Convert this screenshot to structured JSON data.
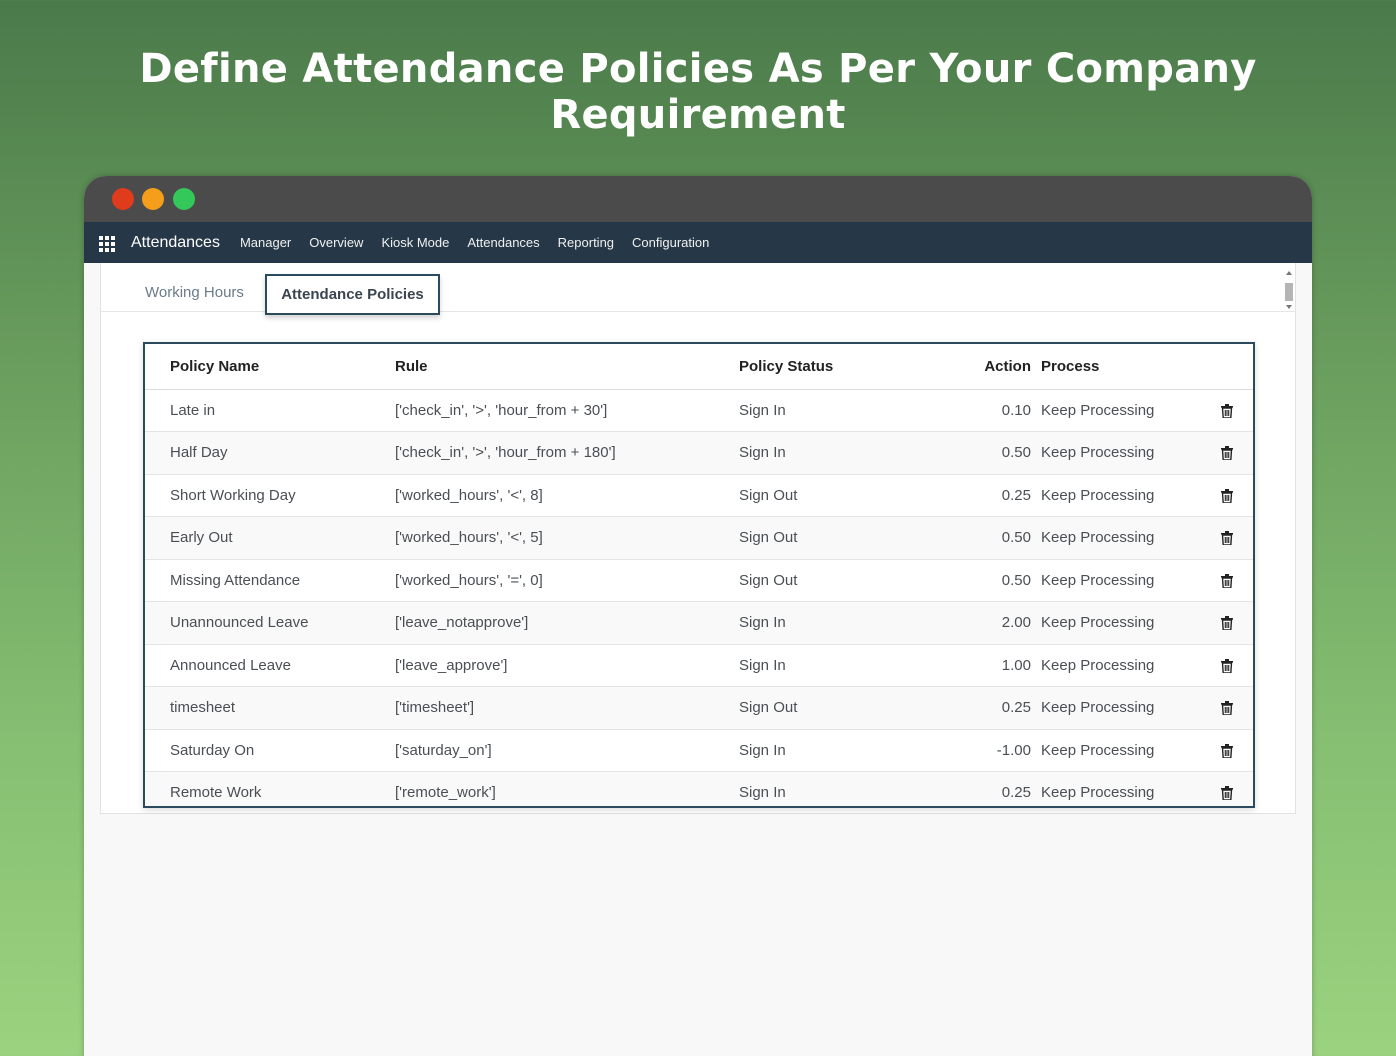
{
  "headline": "Define Attendance Policies As Per Your Company Requirement",
  "navbar": {
    "brand": "Attendances",
    "menu": [
      "Manager",
      "Overview",
      "Kiosk Mode",
      "Attendances",
      "Reporting",
      "Configuration"
    ]
  },
  "tabs": {
    "working_hours": "Working Hours",
    "attendance_policies": "Attendance Policies"
  },
  "table": {
    "headers": {
      "policy_name": "Policy Name",
      "rule": "Rule",
      "policy_status": "Policy Status",
      "action": "Action",
      "process": "Process"
    },
    "rows": [
      {
        "name": "Late in",
        "rule": "['check_in', '>', 'hour_from + 30']",
        "status": "Sign In",
        "action": "0.10",
        "process": "Keep Processing"
      },
      {
        "name": "Half Day",
        "rule": "['check_in', '>', 'hour_from + 180']",
        "status": "Sign In",
        "action": "0.50",
        "process": "Keep Processing"
      },
      {
        "name": "Short Working Day",
        "rule": "['worked_hours', '<', 8]",
        "status": "Sign Out",
        "action": "0.25",
        "process": "Keep Processing"
      },
      {
        "name": "Early Out",
        "rule": "['worked_hours', '<', 5]",
        "status": "Sign Out",
        "action": "0.50",
        "process": "Keep Processing"
      },
      {
        "name": "Missing Attendance",
        "rule": "['worked_hours', '=', 0]",
        "status": "Sign Out",
        "action": "0.50",
        "process": "Keep Processing"
      },
      {
        "name": "Unannounced Leave",
        "rule": "['leave_notapprove']",
        "status": "Sign In",
        "action": "2.00",
        "process": "Keep Processing"
      },
      {
        "name": "Announced Leave",
        "rule": "['leave_approve']",
        "status": "Sign In",
        "action": "1.00",
        "process": "Keep Processing"
      },
      {
        "name": "timesheet",
        "rule": "['timesheet']",
        "status": "Sign Out",
        "action": "0.25",
        "process": "Keep Processing"
      },
      {
        "name": "Saturday On",
        "rule": "['saturday_on']",
        "status": "Sign In",
        "action": "-1.00",
        "process": "Keep Processing"
      },
      {
        "name": "Remote Work",
        "rule": "['remote_work']",
        "status": "Sign In",
        "action": "0.25",
        "process": "Keep Processing"
      }
    ]
  },
  "colors": {
    "navbar": "#263847",
    "titlebar": "#4b4b4b",
    "accent_border": "#2b4a5c",
    "traffic_red": "#e03b1c",
    "traffic_yellow": "#f59e1c",
    "traffic_green": "#34c759"
  },
  "icons": {
    "apps": "apps-grid-icon",
    "delete": "trash-icon"
  }
}
